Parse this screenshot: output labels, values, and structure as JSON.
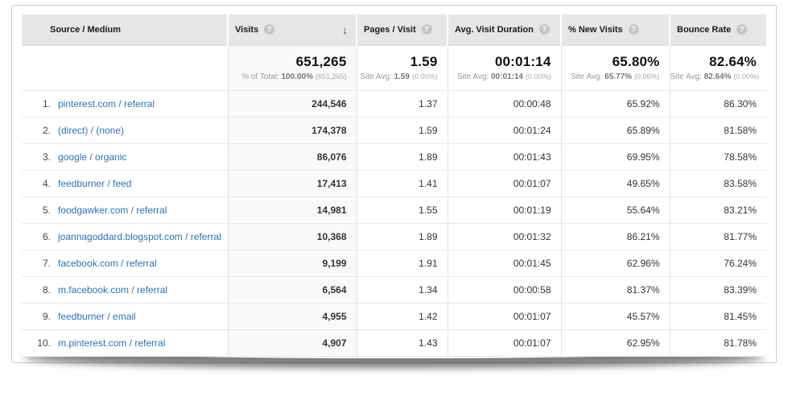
{
  "icons": {
    "help": "?",
    "sort_desc": "↓"
  },
  "table": {
    "columns": [
      {
        "label": "Source / Medium",
        "has_help": false
      },
      {
        "label": "Visits",
        "has_help": true,
        "sorted": "descending"
      },
      {
        "label": "Pages / Visit",
        "has_help": true
      },
      {
        "label": "Avg. Visit Duration",
        "has_help": true
      },
      {
        "label": "% New Visits",
        "has_help": true
      },
      {
        "label": "Bounce Rate",
        "has_help": true
      }
    ],
    "summary": {
      "visits": {
        "value": "651,265",
        "sub_prefix": "% of Total: ",
        "sub_value": "100.00%",
        "sub_paren": "(651,265)"
      },
      "pages": {
        "value": "1.59",
        "sub_prefix": "Site Avg: ",
        "sub_value": "1.59",
        "sub_paren": "(0.00%)"
      },
      "duration": {
        "value": "00:01:14",
        "sub_prefix": "Site Avg: ",
        "sub_value": "00:01:14",
        "sub_paren": "(0.00%)"
      },
      "new": {
        "value": "65.80%",
        "sub_prefix": "Site Avg: ",
        "sub_value": "65.77%",
        "sub_paren": "(0.06%)"
      },
      "bounce": {
        "value": "82.64%",
        "sub_prefix": "Site Avg: ",
        "sub_value": "82.64%",
        "sub_paren": "(0.00%)"
      }
    },
    "rows": [
      {
        "index": "1.",
        "source": "pinterest.com / referral",
        "visits": "244,546",
        "pages_per_visit": "1.37",
        "avg_visit_duration": "00:00:48",
        "pct_new_visits": "65.92%",
        "bounce_rate": "86.30%"
      },
      {
        "index": "2.",
        "source": "(direct) / (none)",
        "visits": "174,378",
        "pages_per_visit": "1.59",
        "avg_visit_duration": "00:01:24",
        "pct_new_visits": "65.89%",
        "bounce_rate": "81.58%"
      },
      {
        "index": "3.",
        "source": "google / organic",
        "visits": "86,076",
        "pages_per_visit": "1.89",
        "avg_visit_duration": "00:01:43",
        "pct_new_visits": "69.95%",
        "bounce_rate": "78.58%"
      },
      {
        "index": "4.",
        "source": "feedburner / feed",
        "visits": "17,413",
        "pages_per_visit": "1.41",
        "avg_visit_duration": "00:01:07",
        "pct_new_visits": "49.65%",
        "bounce_rate": "83.58%"
      },
      {
        "index": "5.",
        "source": "foodgawker.com / referral",
        "visits": "14,981",
        "pages_per_visit": "1.55",
        "avg_visit_duration": "00:01:19",
        "pct_new_visits": "55.64%",
        "bounce_rate": "83.21%"
      },
      {
        "index": "6.",
        "source": "joannagoddard.blogspot.com / referral",
        "visits": "10,368",
        "pages_per_visit": "1.89",
        "avg_visit_duration": "00:01:32",
        "pct_new_visits": "86.21%",
        "bounce_rate": "81.77%"
      },
      {
        "index": "7.",
        "source": "facebook.com / referral",
        "visits": "9,199",
        "pages_per_visit": "1.91",
        "avg_visit_duration": "00:01:45",
        "pct_new_visits": "62.96%",
        "bounce_rate": "76.24%"
      },
      {
        "index": "8.",
        "source": "m.facebook.com / referral",
        "visits": "6,564",
        "pages_per_visit": "1.34",
        "avg_visit_duration": "00:00:58",
        "pct_new_visits": "81.37%",
        "bounce_rate": "83.39%"
      },
      {
        "index": "9.",
        "source": "feedburner / email",
        "visits": "4,955",
        "pages_per_visit": "1.42",
        "avg_visit_duration": "00:01:07",
        "pct_new_visits": "45.57%",
        "bounce_rate": "81.45%"
      },
      {
        "index": "10.",
        "source": "m.pinterest.com / referral",
        "visits": "4,907",
        "pages_per_visit": "1.43",
        "avg_visit_duration": "00:01:07",
        "pct_new_visits": "62.95%",
        "bounce_rate": "81.78%"
      }
    ]
  }
}
